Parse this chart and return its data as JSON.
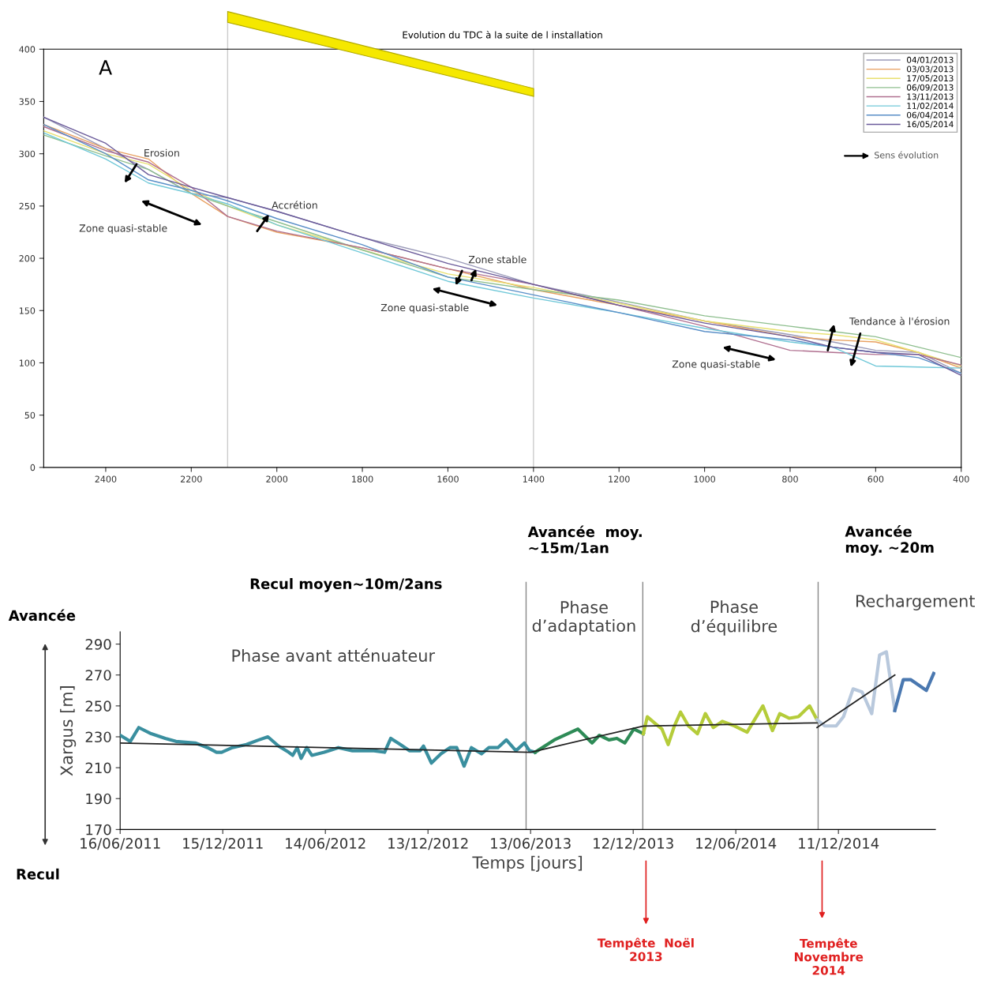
{
  "chart_data": [
    {
      "type": "line",
      "title": "Evolution du TDC à la suite de l installation",
      "x": [
        2545,
        2400,
        2300,
        2200,
        2115,
        2000,
        1800,
        1600,
        1400,
        1200,
        1000,
        800,
        700,
        600,
        500,
        400
      ],
      "series": [
        {
          "name": "04/01/2013",
          "color": "#9a9ab8",
          "values": [
            335,
            305,
            285,
            262,
            258,
            245,
            220,
            200,
            175,
            158,
            140,
            127,
            120,
            112,
            110,
            90
          ]
        },
        {
          "name": "03/03/2013",
          "color": "#e8a060",
          "values": [
            328,
            305,
            295,
            262,
            240,
            225,
            210,
            190,
            170,
            155,
            140,
            125,
            122,
            120,
            110,
            95
          ]
        },
        {
          "name": "17/05/2013",
          "color": "#e8e070",
          "values": [
            322,
            300,
            290,
            265,
            250,
            232,
            208,
            185,
            172,
            157,
            140,
            130,
            127,
            122,
            110,
            97
          ]
        },
        {
          "name": "06/09/2013",
          "color": "#8fbf8f",
          "values": [
            318,
            298,
            285,
            262,
            250,
            235,
            208,
            182,
            170,
            160,
            145,
            135,
            130,
            125,
            115,
            105
          ]
        },
        {
          "name": "13/11/2013",
          "color": "#b07090",
          "values": [
            326,
            303,
            292,
            268,
            240,
            226,
            210,
            190,
            175,
            155,
            135,
            112,
            110,
            108,
            108,
            98
          ]
        },
        {
          "name": "11/02/2014",
          "color": "#70c8d8",
          "values": [
            320,
            295,
            272,
            262,
            252,
            232,
            205,
            178,
            162,
            148,
            133,
            120,
            115,
            97,
            96,
            95
          ]
        },
        {
          "name": "06/04/2014",
          "color": "#5a8fc8",
          "values": [
            328,
            300,
            275,
            265,
            255,
            238,
            213,
            182,
            165,
            148,
            130,
            122,
            115,
            110,
            105,
            90
          ]
        },
        {
          "name": "16/05/2014",
          "color": "#6a5a9a",
          "values": [
            335,
            310,
            280,
            268,
            258,
            245,
            220,
            195,
            175,
            155,
            138,
            125,
            115,
            110,
            108,
            88
          ]
        }
      ],
      "xlim": [
        2545,
        400
      ],
      "ylim": [
        0,
        400
      ],
      "xticks": [
        2400,
        2200,
        2000,
        1800,
        1600,
        1400,
        1200,
        1000,
        800,
        600,
        400
      ],
      "yticks": [
        0,
        50,
        100,
        150,
        200,
        250,
        300,
        350,
        400
      ],
      "legend": "top right",
      "ref_lines": [
        {
          "axis": "x",
          "value": 2115,
          "label": null,
          "color": "#cccccc"
        },
        {
          "axis": "x",
          "value": 1400,
          "label": null,
          "color": "#cccccc"
        }
      ],
      "annotations": [
        "A",
        "Erosion",
        "Zone quasi-stable",
        "Accrétion",
        "Zone stable",
        "Zone quasi-stable",
        "Tendance à l'érosion",
        "Zone quasi-stable",
        "Sens évolution"
      ]
    },
    {
      "type": "line",
      "xlabel": "Temps [jours]",
      "ylabel": "Xargus [m]",
      "series": [
        {
          "color": "#3a8f9f",
          "x": [
            "2011-06-16",
            "2011-07-04",
            "2011-07-19",
            "2011-08-10",
            "2011-09-04",
            "2011-09-23",
            "2011-10-27",
            "2011-11-18",
            "2011-12-04",
            "2011-12-13",
            "2012-01-01",
            "2012-01-26",
            "2012-02-17",
            "2012-03-04",
            "2012-03-23",
            "2012-04-10",
            "2012-04-17",
            "2012-04-25",
            "2012-05-02",
            "2012-05-12",
            "2012-05-21",
            "2012-06-12",
            "2012-07-07",
            "2012-08-01",
            "2012-09-08",
            "2012-09-27",
            "2012-10-08",
            "2012-10-25",
            "2012-11-10",
            "2012-11-29",
            "2012-12-05",
            "2012-12-19",
            "2013-01-05",
            "2013-01-21",
            "2013-02-02",
            "2013-02-15",
            "2013-02-28",
            "2013-03-18",
            "2013-03-31",
            "2013-04-16",
            "2013-05-01",
            "2013-05-18",
            "2013-06-02",
            "2013-06-11",
            "2013-06-21"
          ],
          "values": [
            231,
            227,
            236,
            232,
            229,
            227,
            226,
            223,
            220,
            220,
            223,
            225,
            228,
            230,
            224,
            220,
            218,
            223,
            216,
            223,
            218,
            220,
            223,
            221,
            221,
            220,
            229,
            225,
            221,
            221,
            224,
            213,
            219,
            223,
            223,
            211,
            223,
            219,
            223,
            223,
            228,
            221,
            226,
            221,
            220
          ]
        },
        {
          "color": "#2e8b57",
          "x": [
            "2013-06-21",
            "2013-07-25",
            "2013-09-05",
            "2013-09-30",
            "2013-10-13",
            "2013-10-30",
            "2013-11-13",
            "2013-11-27",
            "2013-12-13",
            "2013-12-30"
          ],
          "values": [
            220,
            228,
            235,
            226,
            231,
            228,
            229,
            226,
            235,
            232
          ]
        },
        {
          "color": "#b5cc3a",
          "x": [
            "2013-12-30",
            "2014-01-06",
            "2014-01-22",
            "2014-02-01",
            "2014-02-12",
            "2014-02-23",
            "2014-03-06",
            "2014-03-20",
            "2014-04-05",
            "2014-04-19",
            "2014-05-03",
            "2014-05-19",
            "2014-06-10",
            "2014-07-02",
            "2014-07-30",
            "2014-08-16",
            "2014-08-29",
            "2014-09-15",
            "2014-10-01",
            "2014-10-21",
            "2014-11-03"
          ],
          "values": [
            232,
            243,
            238,
            235,
            225,
            237,
            246,
            237,
            232,
            245,
            236,
            240,
            237,
            233,
            250,
            234,
            245,
            242,
            243,
            250,
            241
          ]
        },
        {
          "color": "#b8c8dc",
          "x": [
            "2014-11-03",
            "2014-11-17",
            "2014-12-07",
            "2014-12-20",
            "2015-01-06",
            "2015-01-22",
            "2015-02-08",
            "2015-02-22",
            "2015-03-06",
            "2015-03-21"
          ],
          "values": [
            241,
            237,
            237,
            243,
            261,
            259,
            245,
            283,
            285,
            247
          ]
        },
        {
          "color": "#4a78b0",
          "x": [
            "2015-03-21",
            "2015-04-05",
            "2015-04-18",
            "2015-05-16",
            "2015-05-29"
          ],
          "values": [
            247,
            267,
            267,
            260,
            271
          ]
        },
        {
          "color": "#222222",
          "x": [
            "2011-06-16",
            "2013-06-13",
            "2013-12-30",
            "2014-11-03"
          ],
          "values": [
            226,
            220,
            237,
            239
          ]
        },
        {
          "color": "#222222",
          "x": [
            "2014-11-03",
            "2015-03-21"
          ],
          "values": [
            236,
            270
          ]
        }
      ],
      "xlim": [
        "2011-06-16",
        "2015-06-01"
      ],
      "ylim": [
        170,
        298
      ],
      "xticks": [
        {
          "value": "2011-06-16",
          "label": "16/06/2011"
        },
        {
          "value": "2011-12-15",
          "label": "15/12/2011"
        },
        {
          "value": "2012-06-14",
          "label": "14/06/2012"
        },
        {
          "value": "2012-12-13",
          "label": "13/12/2012"
        },
        {
          "value": "2013-06-13",
          "label": "13/06/2013"
        },
        {
          "value": "2013-12-12",
          "label": "12/12/2013"
        },
        {
          "value": "2014-06-12",
          "label": "12/06/2014"
        },
        {
          "value": "2014-12-11",
          "label": "11/12/2014"
        }
      ],
      "yticks": [
        170,
        190,
        210,
        230,
        250,
        270,
        290
      ],
      "ref_lines": [
        {
          "axis": "x",
          "value": "2013-06-05",
          "label": null,
          "color": "#888888"
        },
        {
          "axis": "x",
          "value": "2013-12-29",
          "label": null,
          "color": "#888888"
        },
        {
          "axis": "x",
          "value": "2014-11-05",
          "label": null,
          "color": "#888888"
        }
      ],
      "annotations": [
        "Recul moyen~10m/2ans",
        "Avancée  moy.\n~15m/1an",
        "Avancée\nmoy. ~20m",
        "Phase avant atténuateur",
        "Phase\nd’adaptation",
        "Phase\nd’équilibre",
        "Rechargement",
        "Avancée",
        "Recul",
        "Tempête  Noël\n2013",
        "Tempête\nNovembre\n2014"
      ]
    }
  ]
}
